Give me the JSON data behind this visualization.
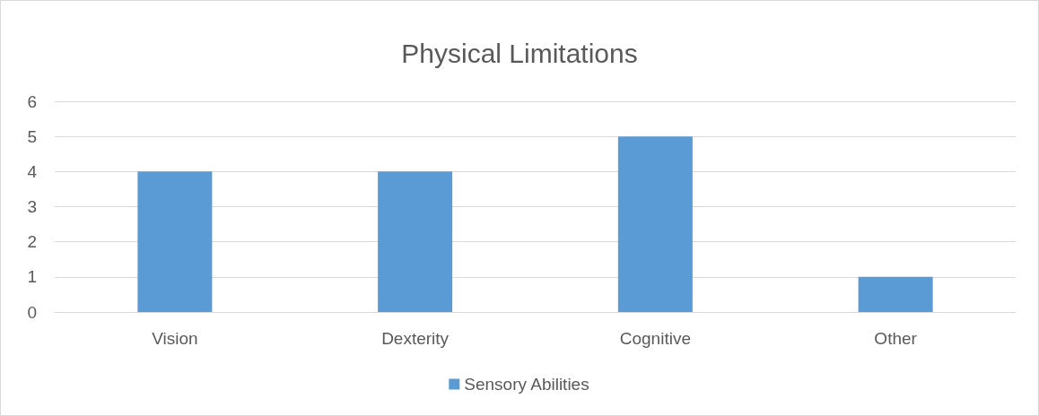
{
  "chart_data": {
    "type": "bar",
    "title": "Physical Limitations",
    "categories": [
      "Vision",
      "Dexterity",
      "Cognitive",
      "Other"
    ],
    "series": [
      {
        "name": "Sensory Abilities",
        "color": "#5b9bd5",
        "values": [
          4,
          4,
          5,
          1
        ]
      }
    ],
    "ylim": [
      0,
      6
    ],
    "yticks": [
      0,
      1,
      2,
      3,
      4,
      5,
      6
    ],
    "grid": "y",
    "legend": "bottom"
  }
}
